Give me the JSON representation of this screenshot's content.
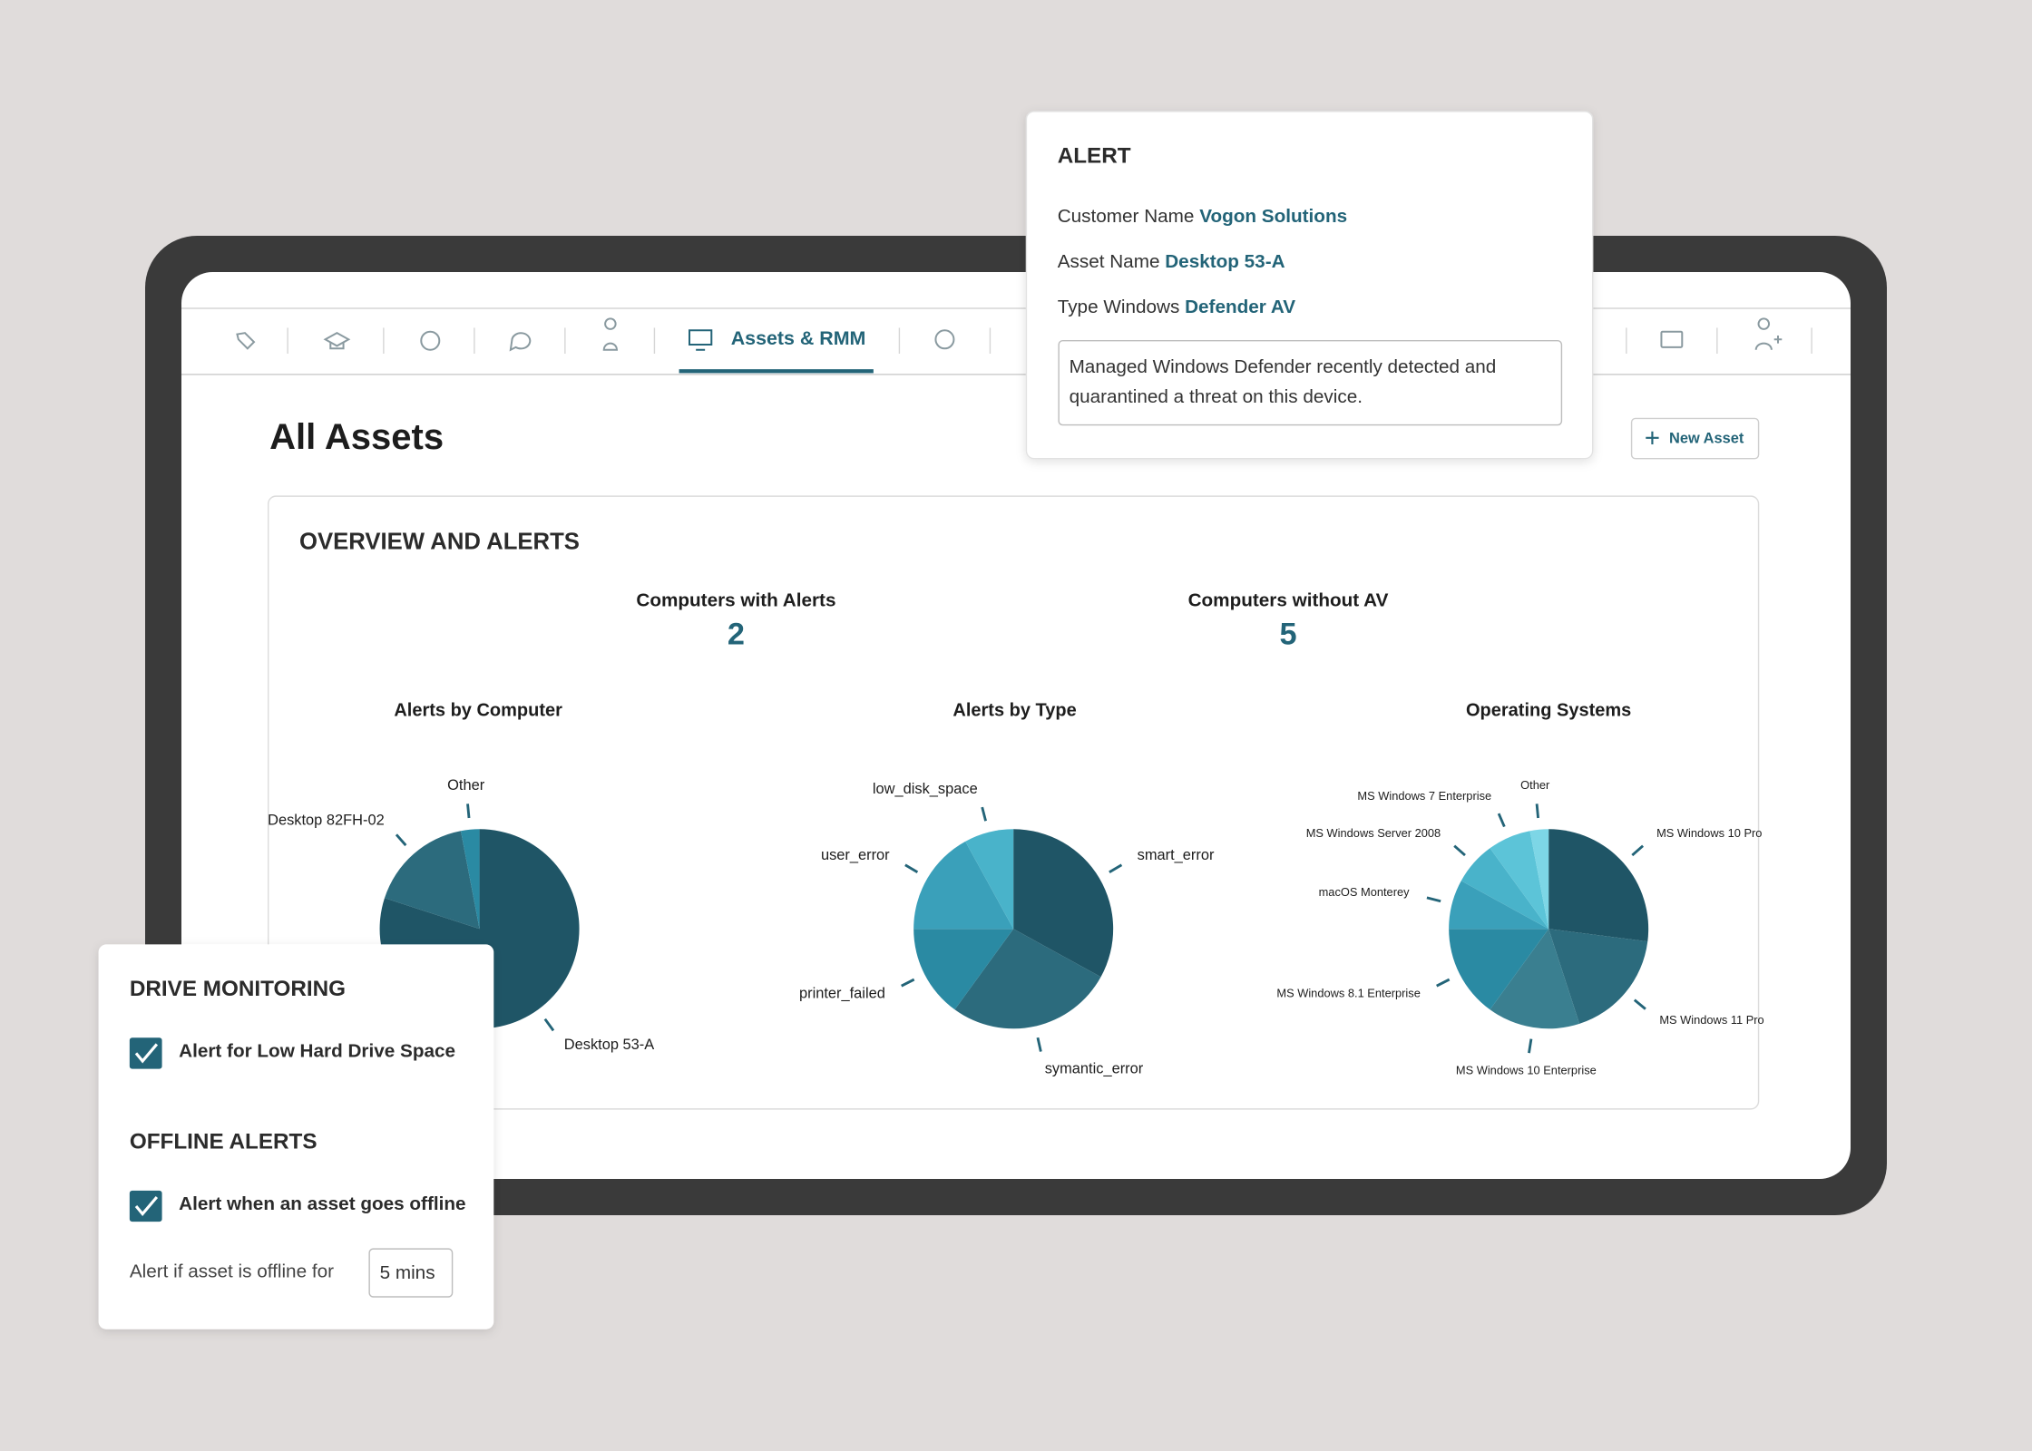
{
  "nav": {
    "active_tab": "Assets & RMM"
  },
  "page_title": "All Assets",
  "new_asset_button": "New Asset",
  "overview": {
    "title": "OVERVIEW AND ALERTS",
    "stats": [
      {
        "label": "Computers with Alerts",
        "value": 2
      },
      {
        "label": "Computers without AV",
        "value": 5
      }
    ],
    "charts": [
      {
        "type": "pie",
        "title": "Alerts by Computer",
        "categories": [
          "Desktop 53-A",
          "Desktop 82FH-02",
          "Other"
        ],
        "values": [
          80,
          17,
          3
        ],
        "colors": [
          "#1f5566",
          "#2c6b7d",
          "#2a8aa3"
        ]
      },
      {
        "type": "pie",
        "title": "Alerts by Type",
        "categories": [
          "smart_error",
          "symantic_error",
          "printer_failed",
          "user_error",
          "low_disk_space"
        ],
        "values": [
          33,
          27,
          15,
          17,
          8
        ],
        "colors": [
          "#1f5566",
          "#2c6b7d",
          "#2a8aa3",
          "#3aa0ba",
          "#49b3ca"
        ]
      },
      {
        "type": "pie",
        "title": "Operating Systems",
        "categories": [
          "MS Windows 10 Pro",
          "MS Windows 11 Pro",
          "MS Windows 10 Enterprise",
          "MS Windows 8.1 Enterprise",
          "macOS Monterey",
          "MS Windows Server 2008",
          "MS Windows 7 Enterprise",
          "Other"
        ],
        "values": [
          27,
          18,
          15,
          15,
          8,
          7,
          7,
          3
        ],
        "colors": [
          "#1f5566",
          "#2c6b7d",
          "#3a7f90",
          "#2a8aa3",
          "#3aa0ba",
          "#49b3ca",
          "#5cc4d8",
          "#7dd6e6"
        ]
      }
    ]
  },
  "alert_popup": {
    "title": "ALERT",
    "rows": [
      {
        "label": "Customer Name",
        "value": "Vogon Solutions"
      },
      {
        "label": "Asset Name",
        "value": "Desktop 53-A"
      },
      {
        "label": "Type Windows",
        "value": "Defender AV"
      }
    ],
    "message_line_1": "Managed Windows Defender recently detected and",
    "message_line_2": "quarantined a threat on this device."
  },
  "drive_panel": {
    "drive_title": "DRIVE MONITORING",
    "drive_option": "Alert for Low Hard Drive Space",
    "offline_title": "OFFLINE ALERTS",
    "offline_option": "Alert when an asset goes offline",
    "offline_for_label": "Alert if asset is offline for",
    "offline_for_value": "5 mins"
  }
}
